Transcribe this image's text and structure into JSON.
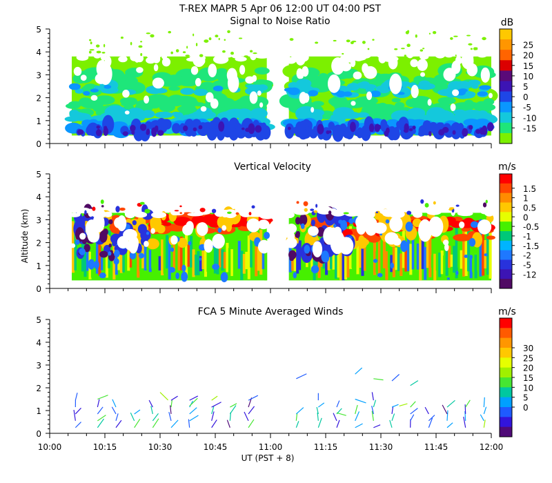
{
  "header": {
    "title": "T-REX   MAPR   5 Apr 06   12:00 UT   04:00   PST"
  },
  "axes": {
    "y_label": "Altitude (km)",
    "x_label": "UT  (PST + 8)",
    "x_ticks": [
      "10:00",
      "10:15",
      "10:30",
      "10:45",
      "11:00",
      "11:15",
      "11:30",
      "11:45",
      "12:00"
    ],
    "y_ticks": [
      "0",
      "1",
      "2",
      "3",
      "4",
      "5"
    ]
  },
  "chart_data": [
    {
      "type": "heatmap",
      "title": "Signal to Noise Ratio",
      "xlabel": "UT  (PST + 8)",
      "ylabel": "Altitude (km)",
      "xlim": [
        "10:00",
        "12:00"
      ],
      "ylim": [
        0,
        5
      ],
      "data_gap": [
        "10:59",
        "11:05"
      ],
      "coverage": {
        "segment_1": [
          "10:06",
          "10:59"
        ],
        "segment_2": [
          "11:05",
          "12:00"
        ],
        "alt_min": 0.35,
        "alt_max": 3.8
      },
      "colorbar": {
        "unit": "dB",
        "ticks": [
          "25",
          "20",
          "15",
          "10",
          "5",
          "0",
          "-5",
          "-10",
          "-15"
        ],
        "colors": [
          "#ffc800",
          "#ff9600",
          "#ff6400",
          "#dc0000",
          "#5a0a78",
          "#3c14b4",
          "#1e46e6",
          "#0a96ff",
          "#14c8dc",
          "#1ee67a",
          "#7cf000"
        ]
      }
    },
    {
      "type": "heatmap",
      "title": "Vertical Velocity",
      "xlabel": "UT  (PST + 8)",
      "ylabel": "Altitude (km)",
      "xlim": [
        "10:00",
        "12:00"
      ],
      "ylim": [
        0,
        5
      ],
      "data_gap": [
        "10:59",
        "11:05"
      ],
      "coverage": {
        "segment_1": [
          "10:06",
          "10:59"
        ],
        "segment_2": [
          "11:05",
          "12:00"
        ],
        "alt_min": 0.35,
        "alt_max": 3.6
      },
      "colorbar": {
        "unit": "m/s",
        "ticks": [
          "1.5",
          "1",
          "0.5",
          "0",
          "-0.5",
          "-1",
          "-1.5",
          "-2",
          "-5",
          "-12"
        ],
        "colors": [
          "#ff0000",
          "#ff4600",
          "#ff8c00",
          "#ffc800",
          "#e6ff00",
          "#46f000",
          "#00c878",
          "#00b4ff",
          "#1e78ff",
          "#2832dc",
          "#3c14b4",
          "#500a64"
        ]
      }
    },
    {
      "type": "scatter",
      "marker": "wind barb",
      "title": "FCA 5 Minute Averaged Winds",
      "xlabel": "UT  (PST + 8)",
      "ylabel": "Altitude (km)",
      "xlim": [
        "10:00",
        "12:00"
      ],
      "ylim": [
        0,
        5
      ],
      "profile_times": [
        "10:07",
        "10:13",
        "10:18",
        "10:23",
        "10:28",
        "10:33",
        "10:38",
        "10:44",
        "10:49",
        "10:54",
        "11:07",
        "11:13",
        "11:18",
        "11:23",
        "11:28",
        "11:33",
        "11:38",
        "11:43",
        "11:48",
        "11:53",
        "11:58"
      ],
      "speed_range_ms": [
        0,
        30
      ],
      "colorbar": {
        "unit": "m/s",
        "ticks": [
          "30",
          "25",
          "20",
          "15",
          "10",
          "5",
          "0"
        ],
        "colors": [
          "#ff0000",
          "#ff5a00",
          "#ff9600",
          "#ffc800",
          "#e6ff00",
          "#a0f000",
          "#46e632",
          "#00c8a0",
          "#00a0ff",
          "#1e5aff",
          "#3214dc",
          "#500a78"
        ]
      }
    }
  ]
}
